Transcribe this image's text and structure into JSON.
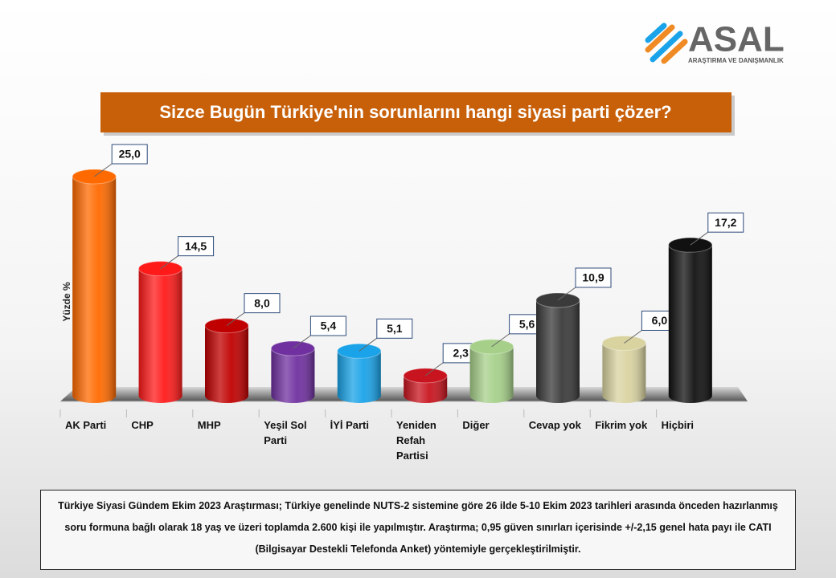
{
  "logo": {
    "name": "ASAL",
    "subtitle": "ARAŞTIRMA VE DANIŞMANLIK"
  },
  "chart_data": {
    "type": "bar",
    "title": "Sizce Bugün Türkiye'nin sorunlarını hangi siyasi parti çözer?",
    "y_label": "Yüzde %",
    "categories": [
      "AK Parti",
      "CHP",
      "MHP",
      "Yeşil Sol Parti",
      "İYİ Parti",
      "Yeniden Refah Partisi",
      "Diğer",
      "Cevap yok",
      "Fikrim yok",
      "Hiçbiri"
    ],
    "values": [
      25,
      14.5,
      8,
      5.4,
      5.1,
      2.3,
      5.6,
      10.9,
      6,
      17.2
    ],
    "value_labels": [
      "25,0",
      "14,5",
      "8,0",
      "5,4",
      "5,1",
      "2,3",
      "5,6",
      "10,9",
      "6,0",
      "17,2"
    ],
    "colors": [
      "#ff6a00",
      "#ff1a1a",
      "#c00000",
      "#7030a0",
      "#1aa3e8",
      "#c8141e",
      "#a6d08a",
      "#3a3a3a",
      "#d9d3a0",
      "#111111"
    ],
    "ylim": [
      0,
      25
    ]
  },
  "note": "Türkiye Siyasi Gündem Ekim 2023 Araştırması; Türkiye genelinde NUTS-2 sistemine göre 26 ilde 5-10 Ekim 2023 tarihleri arasında önceden hazırlanmış soru formuna bağlı olarak 18 yaş ve üzeri toplamda 2.600 kişi ile yapılmıştır. Araştırma; 0,95 güven sınırları içerisinde +/-2,15 genel hata payı ile CATI (Bilgisayar Destekli Telefonda Anket) yöntemiyle gerçekleştirilmiştir."
}
